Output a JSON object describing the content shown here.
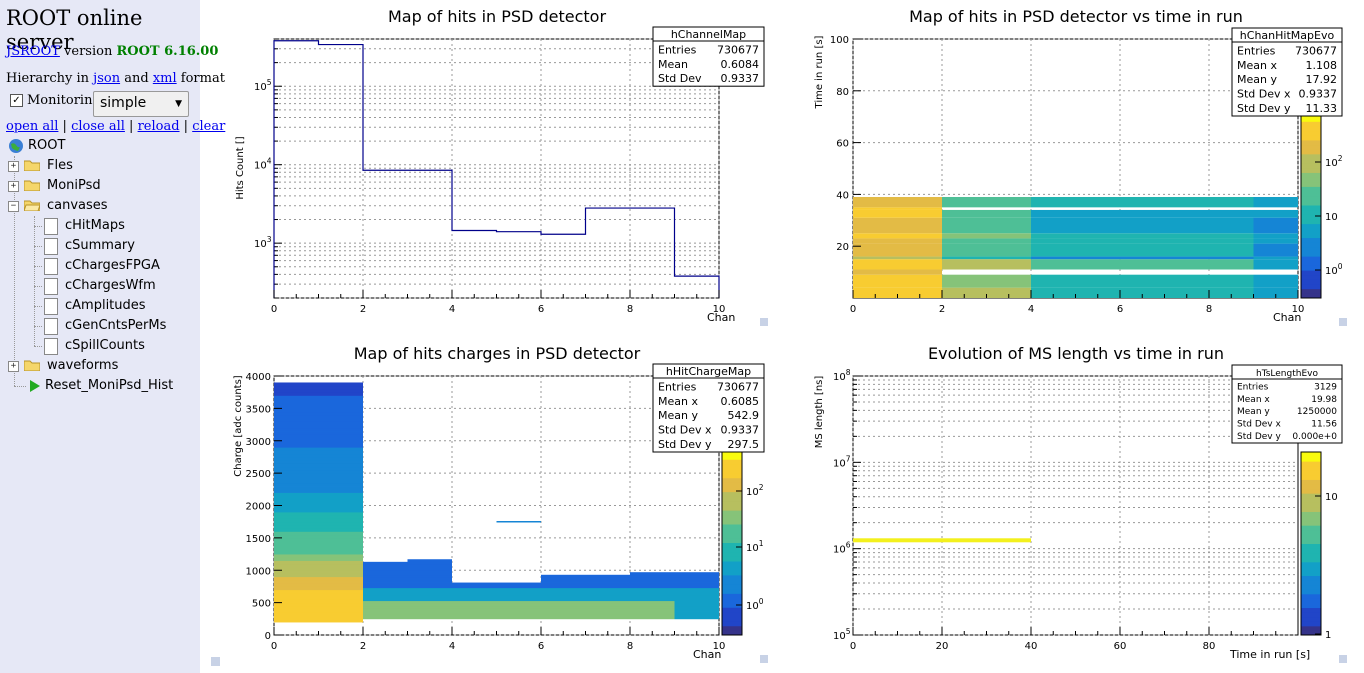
{
  "sidebar": {
    "title": "ROOT online server",
    "jsroot_link": "JSROOT",
    "version_word": "version",
    "version": "ROOT 6.16.00",
    "hier_prefix": "Hierarchy in",
    "json_link": "json",
    "and_word": "and",
    "xml_link": "xml",
    "format_word": "format",
    "monitoring_label": "Monitoring",
    "monitoring_checked": true,
    "layout_select": "simple",
    "actions": [
      "open all",
      "close all",
      "reload",
      "clear"
    ],
    "tree": [
      {
        "label": "ROOT",
        "icon": "globe-icon"
      },
      {
        "label": "Fles",
        "icon": "folder-icon"
      },
      {
        "label": "MoniPsd",
        "icon": "folder-icon"
      },
      {
        "label": "canvases",
        "icon": "folder-open-icon"
      },
      {
        "label": "cHitMaps",
        "icon": "canvas-icon"
      },
      {
        "label": "cSummary",
        "icon": "canvas-icon"
      },
      {
        "label": "cChargesFPGA",
        "icon": "canvas-icon"
      },
      {
        "label": "cChargesWfm",
        "icon": "canvas-icon"
      },
      {
        "label": "cAmplitudes",
        "icon": "canvas-icon"
      },
      {
        "label": "cGenCntsPerMs",
        "icon": "canvas-icon"
      },
      {
        "label": "cSpillCounts",
        "icon": "canvas-icon"
      },
      {
        "label": "waveforms",
        "icon": "folder-icon"
      },
      {
        "label": "Reset_MoniPsd_Hist",
        "icon": "play-icon"
      }
    ]
  },
  "chart_data": [
    {
      "type": "bar",
      "title": "Map of hits in PSD detector",
      "xlabel": "Chan",
      "ylabel": "Hits Count []",
      "xlim": [
        0,
        10
      ],
      "ylim": [
        200,
        400000
      ],
      "log_y": true,
      "x_ticks": [
        "0",
        "2",
        "4",
        "6",
        "8",
        "10"
      ],
      "y_ticks": [
        "10^3",
        "10^4",
        "10^5"
      ],
      "bins": [
        {
          "x": 0,
          "value": 380000
        },
        {
          "x": 1,
          "value": 340000
        },
        {
          "x": 2,
          "value": 8500
        },
        {
          "x": 3,
          "value": 8500
        },
        {
          "x": 4,
          "value": 1450
        },
        {
          "x": 5,
          "value": 1400
        },
        {
          "x": 6,
          "value": 1300
        },
        {
          "x": 7,
          "value": 2800
        },
        {
          "x": 8,
          "value": 2800
        },
        {
          "x": 9,
          "value": 380
        }
      ],
      "color": "#00008b",
      "stats": {
        "name": "hChannelMap",
        "rows": [
          [
            "Entries",
            "730677"
          ],
          [
            "Mean",
            "0.6084"
          ],
          [
            "Std Dev",
            "0.9337"
          ]
        ]
      }
    },
    {
      "type": "heatmap",
      "title": "Map of hits in PSD detector vs time in run",
      "xlabel": "Chan",
      "ylabel": "Time in run [s]",
      "xlim": [
        0,
        10
      ],
      "ylim": [
        0,
        100
      ],
      "x_ticks": [
        "0",
        "2",
        "4",
        "6",
        "8",
        "10"
      ],
      "y_ticks": [
        "20",
        "40",
        "60",
        "80",
        "100"
      ],
      "z_ticks": [
        "10^0",
        "10",
        "10^2"
      ],
      "log_z": true,
      "stats": {
        "name": "hChanHitMapEvo",
        "rows": [
          [
            "Entries",
            "730677"
          ],
          [
            "Mean x",
            "1.108"
          ],
          [
            "Mean y",
            "17.92"
          ],
          [
            "Std Dev x",
            "0.9337"
          ],
          [
            "Std Dev y",
            "11.33"
          ]
        ]
      }
    },
    {
      "type": "heatmap",
      "title": "Map of hits charges in PSD detector",
      "xlabel": "Chan",
      "ylabel": "Charge [adc counts]",
      "xlim": [
        0,
        10
      ],
      "ylim": [
        0,
        4000
      ],
      "x_ticks": [
        "0",
        "2",
        "4",
        "6",
        "8",
        "10"
      ],
      "y_ticks": [
        "0",
        "500",
        "1000",
        "1500",
        "2000",
        "2500",
        "3000",
        "3500",
        "4000"
      ],
      "z_ticks": [
        "10^0",
        "10^1",
        "10^2"
      ],
      "log_z": true,
      "stats": {
        "name": "hHitChargeMap",
        "rows": [
          [
            "Entries",
            "730677"
          ],
          [
            "Mean x",
            "0.6085"
          ],
          [
            "Mean y",
            "542.9"
          ],
          [
            "Std Dev x",
            "0.9337"
          ],
          [
            "Std Dev y",
            "297.5"
          ]
        ]
      }
    },
    {
      "type": "heatmap",
      "title": "Evolution of MS length vs time in run",
      "xlabel": "Time in run [s]",
      "ylabel": "MS length [ns]",
      "xlim": [
        0,
        100
      ],
      "ylim": [
        100000,
        100000000
      ],
      "log_y": true,
      "x_ticks": [
        "0",
        "20",
        "40",
        "60",
        "80"
      ],
      "y_ticks": [
        "10^5",
        "10^6",
        "10^7",
        "10^8"
      ],
      "z_ticks": [
        "1",
        "10"
      ],
      "log_z": true,
      "stats": {
        "name": "hTsLengthEvo",
        "rows": [
          [
            "Entries",
            "3129"
          ],
          [
            "Mean x",
            "19.98"
          ],
          [
            "Mean y",
            "1250000"
          ],
          [
            "Std Dev x",
            "11.56"
          ],
          [
            "Std Dev y",
            "0.000e+0"
          ]
        ]
      }
    }
  ]
}
